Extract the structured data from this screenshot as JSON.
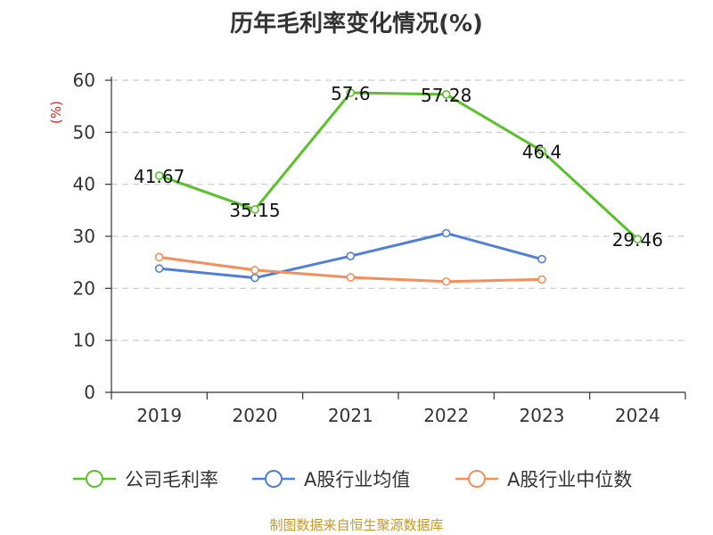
{
  "colors": {
    "company": "#5ac12a",
    "industry_avg": "#4f7fd8",
    "industry_median": "#f48f5c",
    "unit": "#e0201a",
    "source": "#c8972a",
    "grid": "#c9c9c9",
    "axis": "#333333"
  },
  "chart_data": {
    "type": "line",
    "title": "历年毛利率变化情况(%)",
    "ylabel": "(%)",
    "categories": [
      "2019",
      "2020",
      "2021",
      "2022",
      "2023",
      "2024"
    ],
    "ylim": [
      0,
      60
    ],
    "yticks": [
      "0",
      "10",
      "20",
      "30",
      "40",
      "50",
      "60"
    ],
    "grid": true,
    "legend_position": "bottom",
    "series": [
      {
        "name": "公司毛利率",
        "values": [
          41.67,
          35.15,
          57.6,
          57.28,
          46.4,
          29.46
        ],
        "labels": [
          "41.67",
          "35.15",
          "57.6",
          "57.28",
          "46.4",
          "29.46"
        ],
        "color": "#5ac12a"
      },
      {
        "name": "A股行业均值",
        "values": [
          23.8,
          22.0,
          26.2,
          30.6,
          25.6,
          null
        ],
        "color": "#4f7fd8"
      },
      {
        "name": "A股行业中位数",
        "values": [
          26.0,
          23.5,
          22.1,
          21.3,
          21.7,
          null
        ],
        "color": "#f48f5c"
      }
    ]
  },
  "footer": {
    "source": "制图数据来自恒生聚源数据库"
  }
}
